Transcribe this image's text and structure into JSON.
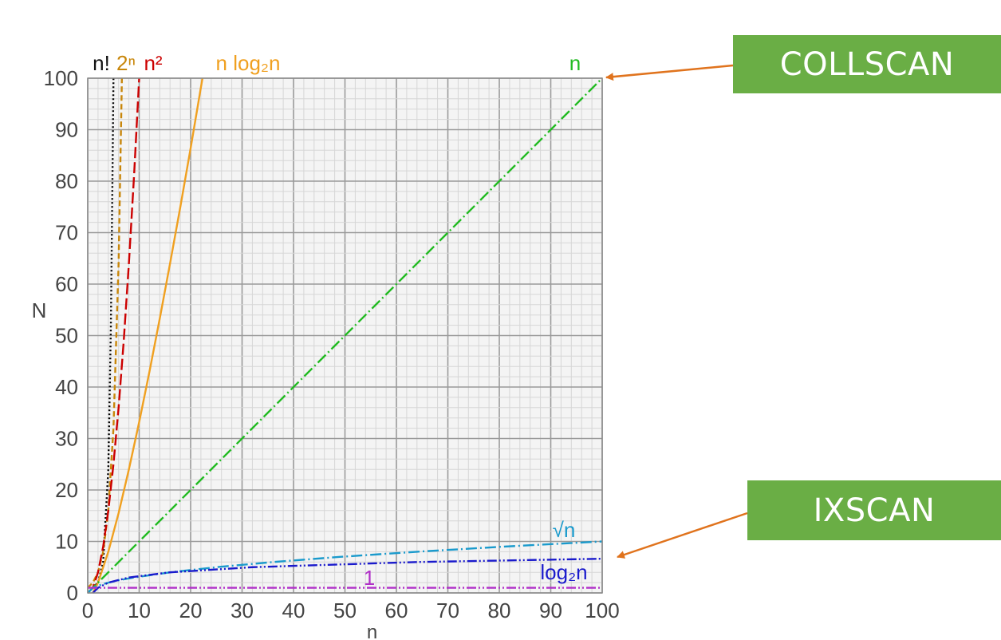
{
  "chart_data": {
    "type": "line",
    "title": "",
    "xlabel": "n",
    "ylabel": "N",
    "xlim": [
      0,
      100
    ],
    "ylim": [
      0,
      100
    ],
    "grid": true,
    "x_ticks": [
      0,
      10,
      20,
      30,
      40,
      50,
      60,
      70,
      80,
      90,
      100
    ],
    "y_ticks": [
      0,
      10,
      20,
      30,
      40,
      50,
      60,
      70,
      80,
      90,
      100
    ],
    "series": [
      {
        "name": "n!",
        "color": "#000000",
        "dash": "dotted",
        "points": [
          [
            1,
            1
          ],
          [
            2,
            2
          ],
          [
            3,
            6
          ],
          [
            4,
            24
          ],
          [
            4.5,
            52
          ],
          [
            4.8,
            80
          ],
          [
            5,
            100
          ]
        ]
      },
      {
        "name": "2ⁿ",
        "color": "#c8860a",
        "dash": "dashed",
        "points": [
          [
            0,
            1
          ],
          [
            1,
            2
          ],
          [
            2,
            4
          ],
          [
            3,
            8
          ],
          [
            4,
            16
          ],
          [
            5,
            32
          ],
          [
            6,
            64
          ],
          [
            6.64,
            100
          ]
        ]
      },
      {
        "name": "n²",
        "color": "#cc0000",
        "dash": "long-dashed",
        "points": [
          [
            0,
            0
          ],
          [
            1,
            1
          ],
          [
            2,
            4
          ],
          [
            3,
            9
          ],
          [
            4,
            16
          ],
          [
            5,
            25
          ],
          [
            6,
            36
          ],
          [
            7,
            49
          ],
          [
            8,
            64
          ],
          [
            9,
            81
          ],
          [
            10,
            100
          ]
        ]
      },
      {
        "name": "n log₂n",
        "color": "#f0a020",
        "dash": "solid",
        "points": [
          [
            1,
            0
          ],
          [
            2,
            2
          ],
          [
            4,
            8
          ],
          [
            6,
            15.5
          ],
          [
            8,
            24
          ],
          [
            10,
            33.2
          ],
          [
            12,
            43
          ],
          [
            14,
            53.3
          ],
          [
            16,
            64
          ],
          [
            18,
            75
          ],
          [
            20,
            86.4
          ],
          [
            22.3,
            100
          ]
        ]
      },
      {
        "name": "n",
        "color": "#22bb22",
        "dash": "dash-dot",
        "points": [
          [
            0,
            0
          ],
          [
            100,
            100
          ]
        ]
      },
      {
        "name": "√n",
        "color": "#1a9acc",
        "dash": "dash-dot",
        "points": [
          [
            0,
            0
          ],
          [
            1,
            1
          ],
          [
            2,
            1.41
          ],
          [
            4,
            2
          ],
          [
            6,
            2.45
          ],
          [
            9,
            3
          ],
          [
            16,
            4
          ],
          [
            25,
            5
          ],
          [
            36,
            6
          ],
          [
            49,
            7
          ],
          [
            64,
            8
          ],
          [
            81,
            9
          ],
          [
            100,
            10
          ]
        ]
      },
      {
        "name": "log₂n",
        "color": "#1a1acc",
        "dash": "dash-dot-dot",
        "points": [
          [
            1,
            0
          ],
          [
            2,
            1
          ],
          [
            4,
            2
          ],
          [
            8,
            3
          ],
          [
            16,
            4
          ],
          [
            32,
            5
          ],
          [
            64,
            6
          ],
          [
            100,
            6.64
          ]
        ]
      },
      {
        "name": "1",
        "color": "#b030c8",
        "dash": "dash-dot-dot",
        "points": [
          [
            0,
            1
          ],
          [
            100,
            1
          ]
        ]
      }
    ]
  },
  "callouts": {
    "collscan": "COLLSCAN",
    "ixscan": "IXSCAN"
  },
  "colors": {
    "callout_bg": "#6aae45",
    "arrow": "#e0731d"
  }
}
